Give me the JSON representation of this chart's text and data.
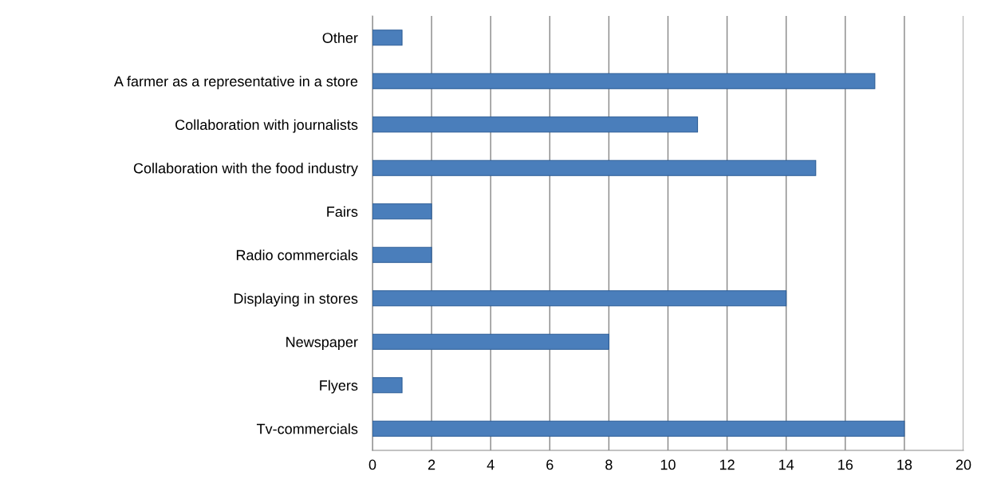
{
  "chart_data": {
    "type": "bar",
    "orientation": "horizontal",
    "categories": [
      "Other",
      "A farmer as a representative in a store",
      "Collaboration with journalists",
      "Collaboration with the food industry",
      "Fairs",
      "Radio commercials",
      "Displaying in stores",
      "Newspaper",
      "Flyers",
      "Tv-commercials"
    ],
    "values": [
      1,
      17,
      11,
      15,
      2,
      2,
      14,
      8,
      1,
      18
    ],
    "color": "#4a7ebb",
    "xlim": [
      0,
      20
    ],
    "xticks": [
      0,
      2,
      4,
      6,
      8,
      10,
      12,
      14,
      16,
      18,
      20
    ],
    "grid": "x",
    "legend": false
  }
}
